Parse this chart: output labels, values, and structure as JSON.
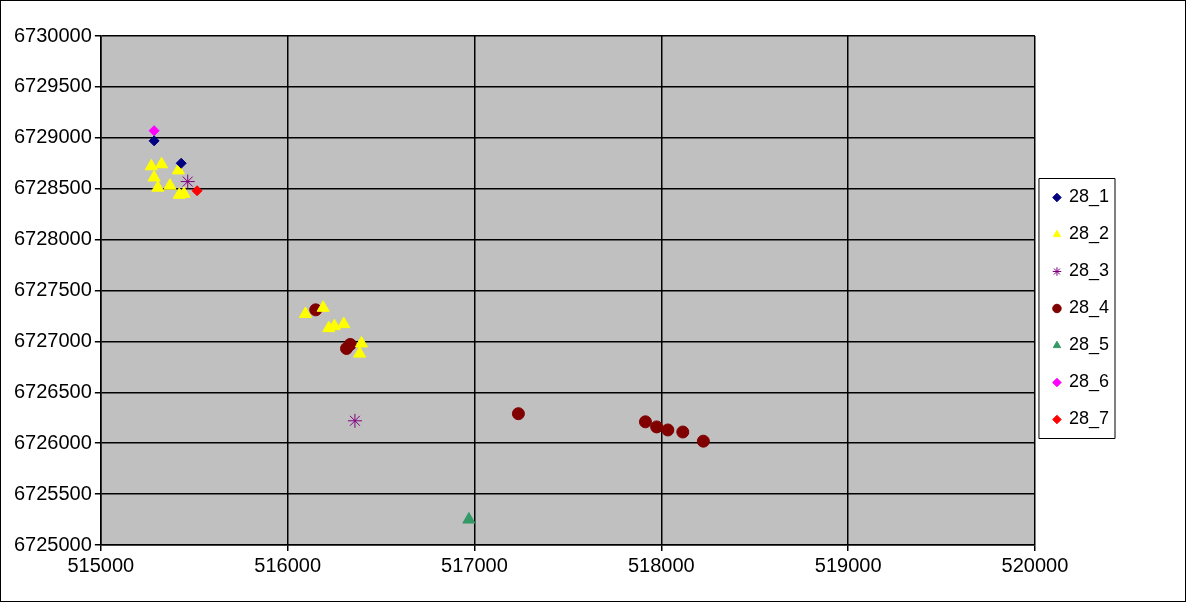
{
  "chart_data": {
    "type": "scatter",
    "xlim": [
      515000,
      520000
    ],
    "ylim": [
      6725000,
      6730000
    ],
    "xticks": [
      515000,
      516000,
      517000,
      518000,
      519000,
      520000
    ],
    "yticks": [
      6725000,
      6725500,
      6726000,
      6726500,
      6727000,
      6727500,
      6728000,
      6728500,
      6729000,
      6729500,
      6730000
    ],
    "grid": true,
    "legend": "right",
    "series": [
      {
        "name": "28_1",
        "color": "#000080",
        "marker": "diamond",
        "x": [
          515285,
          515430
        ],
        "values": [
          6728970,
          6728750
        ]
      },
      {
        "name": "28_2",
        "color": "#ffff00",
        "marker": "triangle",
        "x": [
          515270,
          515325,
          515285,
          515305,
          515370,
          515415,
          515420,
          515445,
          516095,
          516190,
          516220,
          516250,
          516300,
          516395,
          516385
        ],
        "values": [
          6728720,
          6728740,
          6728610,
          6728510,
          6728530,
          6728680,
          6728440,
          6728450,
          6727270,
          6727330,
          6727130,
          6727150,
          6727170,
          6726980,
          6726880
        ]
      },
      {
        "name": "28_3",
        "color": "#800080",
        "marker": "cross",
        "x": [
          515465,
          516360
        ],
        "values": [
          6728570,
          6726220
        ]
      },
      {
        "name": "28_4",
        "color": "#800000",
        "marker": "circle",
        "x": [
          516150,
          516335,
          516315,
          517235,
          517915,
          517975,
          518035,
          518115,
          518225
        ],
        "values": [
          6727310,
          6726970,
          6726930,
          6726290,
          6726210,
          6726160,
          6726130,
          6726110,
          6726020
        ]
      },
      {
        "name": "28_5",
        "color": "#339966",
        "marker": "triangle",
        "x": [
          516970
        ],
        "values": [
          6725250
        ]
      },
      {
        "name": "28_6",
        "color": "#ff00ff",
        "marker": "diamond",
        "x": [
          515285
        ],
        "values": [
          6729070
        ]
      },
      {
        "name": "28_7",
        "color": "#ff0000",
        "marker": "diamond",
        "x": [
          515515
        ],
        "values": [
          6728480
        ]
      }
    ]
  }
}
